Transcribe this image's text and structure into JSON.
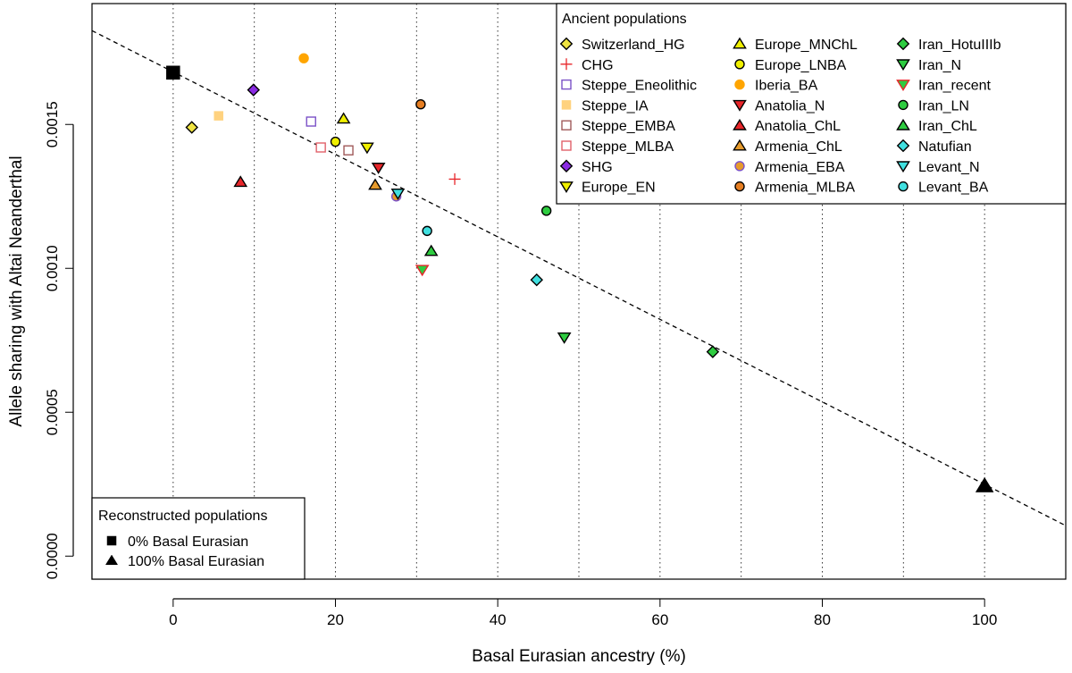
{
  "chart_data": {
    "type": "scatter",
    "xlabel": "Basal Eurasian ancestry (%)",
    "ylabel": "Allele sharing with Altai Neanderthal",
    "xlim": [
      -10,
      110
    ],
    "ylim": [
      -8e-05,
      0.00192
    ],
    "x_ticks": [
      0,
      20,
      40,
      60,
      80,
      100
    ],
    "x_tick_labels": [
      "0",
      "20",
      "40",
      "60",
      "80",
      "100"
    ],
    "y_ticks": [
      0.0,
      0.0005,
      0.001,
      0.0015
    ],
    "y_tick_labels": [
      "0.0000",
      "0.0005",
      "0.0010",
      "0.0015"
    ],
    "vertical_gridlines_dotted": [
      0,
      10,
      20,
      30,
      40,
      50,
      60,
      70,
      80,
      90,
      100
    ],
    "regression_line": {
      "style": "dashed",
      "x": [
        -10,
        110
      ],
      "y": [
        0.001826,
        0.000106
      ]
    },
    "ancient_legend": {
      "title": "Ancient populations",
      "placement": "top-right",
      "columns": [
        [
          {
            "label": "Switzerland_HG",
            "shape": "diamond",
            "fill": "#f0e442",
            "stroke": "#000000"
          },
          {
            "label": "CHG",
            "shape": "plus",
            "fill": "none",
            "stroke": "#e8262a"
          },
          {
            "label": "Steppe_Eneolithic",
            "shape": "square",
            "fill": "#ffffff",
            "stroke": "#7b52c7"
          },
          {
            "label": "Steppe_IA",
            "shape": "square-filled",
            "fill": "#ffd27f",
            "stroke": "#ffd27f"
          },
          {
            "label": "Steppe_EMBA",
            "shape": "square",
            "fill": "#ffffff",
            "stroke": "#a05a5a"
          },
          {
            "label": "Steppe_MLBA",
            "shape": "square",
            "fill": "#ffffff",
            "stroke": "#e0606a"
          },
          {
            "label": "SHG",
            "shape": "diamond",
            "fill": "#8a2be2",
            "stroke": "#000000"
          },
          {
            "label": "Europe_EN",
            "shape": "triangle-down",
            "fill": "#f0f000",
            "stroke": "#000000"
          }
        ],
        [
          {
            "label": "Europe_MNChL",
            "shape": "triangle-up",
            "fill": "#f0f000",
            "stroke": "#000000"
          },
          {
            "label": "Europe_LNBA",
            "shape": "circle",
            "fill": "#f0f000",
            "stroke": "#000000"
          },
          {
            "label": "Iberia_BA",
            "shape": "circle",
            "fill": "#ffa500",
            "stroke": "#ffa500"
          },
          {
            "label": "Anatolia_N",
            "shape": "triangle-down",
            "fill": "#e8262a",
            "stroke": "#000000"
          },
          {
            "label": "Anatolia_ChL",
            "shape": "triangle-up",
            "fill": "#e8262a",
            "stroke": "#000000"
          },
          {
            "label": "Armenia_ChL",
            "shape": "triangle-up",
            "fill": "#e69a2c",
            "stroke": "#000000"
          },
          {
            "label": "Armenia_EBA",
            "shape": "circle",
            "fill": "#e69a2c",
            "stroke": "#7b52c7"
          },
          {
            "label": "Armenia_MLBA",
            "shape": "circle",
            "fill": "#e67e22",
            "stroke": "#000000"
          }
        ],
        [
          {
            "label": "Iran_HotuIIIb",
            "shape": "diamond",
            "fill": "#2ecc40",
            "stroke": "#000000"
          },
          {
            "label": "Iran_N",
            "shape": "triangle-down",
            "fill": "#2ecc40",
            "stroke": "#000000"
          },
          {
            "label": "Iran_recent",
            "shape": "triangle-down",
            "fill": "#2ecc40",
            "stroke": "#e8262a"
          },
          {
            "label": "Iran_LN",
            "shape": "circle",
            "fill": "#2ecc40",
            "stroke": "#000000"
          },
          {
            "label": "Iran_ChL",
            "shape": "triangle-up",
            "fill": "#2ecc40",
            "stroke": "#000000"
          },
          {
            "label": "Natufian",
            "shape": "diamond",
            "fill": "#40e0e0",
            "stroke": "#000000"
          },
          {
            "label": "Levant_N",
            "shape": "triangle-down",
            "fill": "#40e0e0",
            "stroke": "#000000"
          },
          {
            "label": "Levant_BA",
            "shape": "circle",
            "fill": "#40e0e0",
            "stroke": "#000000"
          }
        ]
      ]
    },
    "reconstructed_legend": {
      "title": "Reconstructed populations",
      "placement": "bottom-left",
      "items": [
        {
          "label": "0% Basal Eurasian",
          "shape": "square-filled",
          "fill": "#000000",
          "stroke": "#000000"
        },
        {
          "label": "100% Basal Eurasian",
          "shape": "triangle-filled",
          "fill": "#000000",
          "stroke": "#000000"
        }
      ]
    },
    "points": [
      {
        "name": "0% Basal Eurasian",
        "x": 0,
        "y": 0.00168,
        "shape": "square-filled",
        "fill": "#000000",
        "stroke": "#000000",
        "big": true
      },
      {
        "name": "100% Basal Eurasian",
        "x": 100,
        "y": 0.000245,
        "shape": "triangle-filled",
        "fill": "#000000",
        "stroke": "#000000",
        "big": true
      },
      {
        "name": "Switzerland_HG",
        "x": 2.3,
        "y": 0.00149,
        "shape": "diamond",
        "fill": "#f0e442",
        "stroke": "#000000"
      },
      {
        "name": "Steppe_IA",
        "x": 5.6,
        "y": 0.00153,
        "shape": "square-filled",
        "fill": "#ffd27f",
        "stroke": "#ffd27f"
      },
      {
        "name": "Anatolia_ChL",
        "x": 8.3,
        "y": 0.0013,
        "shape": "triangle-up",
        "fill": "#e8262a",
        "stroke": "#000000"
      },
      {
        "name": "SHG",
        "x": 9.9,
        "y": 0.00162,
        "shape": "diamond",
        "fill": "#8a2be2",
        "stroke": "#000000"
      },
      {
        "name": "Iberia_BA",
        "x": 16.1,
        "y": 0.00173,
        "shape": "circle",
        "fill": "#ffa500",
        "stroke": "#ffa500"
      },
      {
        "name": "Steppe_Eneolithic",
        "x": 17.0,
        "y": 0.00151,
        "shape": "square",
        "fill": "#ffffff",
        "stroke": "#7b52c7"
      },
      {
        "name": "Steppe_MLBA",
        "x": 18.2,
        "y": 0.00142,
        "shape": "square",
        "fill": "#ffffff",
        "stroke": "#e0606a"
      },
      {
        "name": "Europe_LNBA",
        "x": 20.0,
        "y": 0.00144,
        "shape": "circle",
        "fill": "#f0f000",
        "stroke": "#000000"
      },
      {
        "name": "Europe_MNChL",
        "x": 21.0,
        "y": 0.00152,
        "shape": "triangle-up",
        "fill": "#f0f000",
        "stroke": "#000000"
      },
      {
        "name": "Steppe_EMBA",
        "x": 21.6,
        "y": 0.00141,
        "shape": "square",
        "fill": "#ffffff",
        "stroke": "#a05a5a"
      },
      {
        "name": "Europe_EN",
        "x": 23.9,
        "y": 0.00142,
        "shape": "triangle-down",
        "fill": "#f0f000",
        "stroke": "#000000"
      },
      {
        "name": "Armenia_ChL",
        "x": 24.9,
        "y": 0.00129,
        "shape": "triangle-up",
        "fill": "#e69a2c",
        "stroke": "#000000"
      },
      {
        "name": "Anatolia_N",
        "x": 25.3,
        "y": 0.00135,
        "shape": "triangle-down",
        "fill": "#e8262a",
        "stroke": "#000000"
      },
      {
        "name": "Armenia_EBA",
        "x": 27.5,
        "y": 0.00125,
        "shape": "circle",
        "fill": "#e69a2c",
        "stroke": "#7b52c7"
      },
      {
        "name": "Levant_N",
        "x": 27.7,
        "y": 0.00126,
        "shape": "triangle-down",
        "fill": "#40e0e0",
        "stroke": "#000000"
      },
      {
        "name": "Armenia_MLBA",
        "x": 30.5,
        "y": 0.00157,
        "shape": "circle",
        "fill": "#e67e22",
        "stroke": "#000000"
      },
      {
        "name": "Iran_recent",
        "x": 30.7,
        "y": 0.000995,
        "shape": "triangle-down",
        "fill": "#2ecc40",
        "stroke": "#e8262a"
      },
      {
        "name": "Levant_BA",
        "x": 31.3,
        "y": 0.00113,
        "shape": "circle",
        "fill": "#40e0e0",
        "stroke": "#000000"
      },
      {
        "name": "Iran_ChL",
        "x": 31.8,
        "y": 0.00106,
        "shape": "triangle-up",
        "fill": "#2ecc40",
        "stroke": "#000000"
      },
      {
        "name": "CHG",
        "x": 34.7,
        "y": 0.00131,
        "shape": "plus",
        "fill": "none",
        "stroke": "#e8262a"
      },
      {
        "name": "Natufian",
        "x": 44.8,
        "y": 0.00096,
        "shape": "diamond",
        "fill": "#40e0e0",
        "stroke": "#000000"
      },
      {
        "name": "Iran_LN",
        "x": 46.0,
        "y": 0.0012,
        "shape": "circle",
        "fill": "#2ecc40",
        "stroke": "#000000"
      },
      {
        "name": "Iran_N",
        "x": 48.2,
        "y": 0.00076,
        "shape": "triangle-down",
        "fill": "#2ecc40",
        "stroke": "#000000"
      },
      {
        "name": "Iran_HotuIIIb",
        "x": 66.5,
        "y": 0.00071,
        "shape": "diamond",
        "fill": "#2ecc40",
        "stroke": "#000000"
      }
    ]
  }
}
